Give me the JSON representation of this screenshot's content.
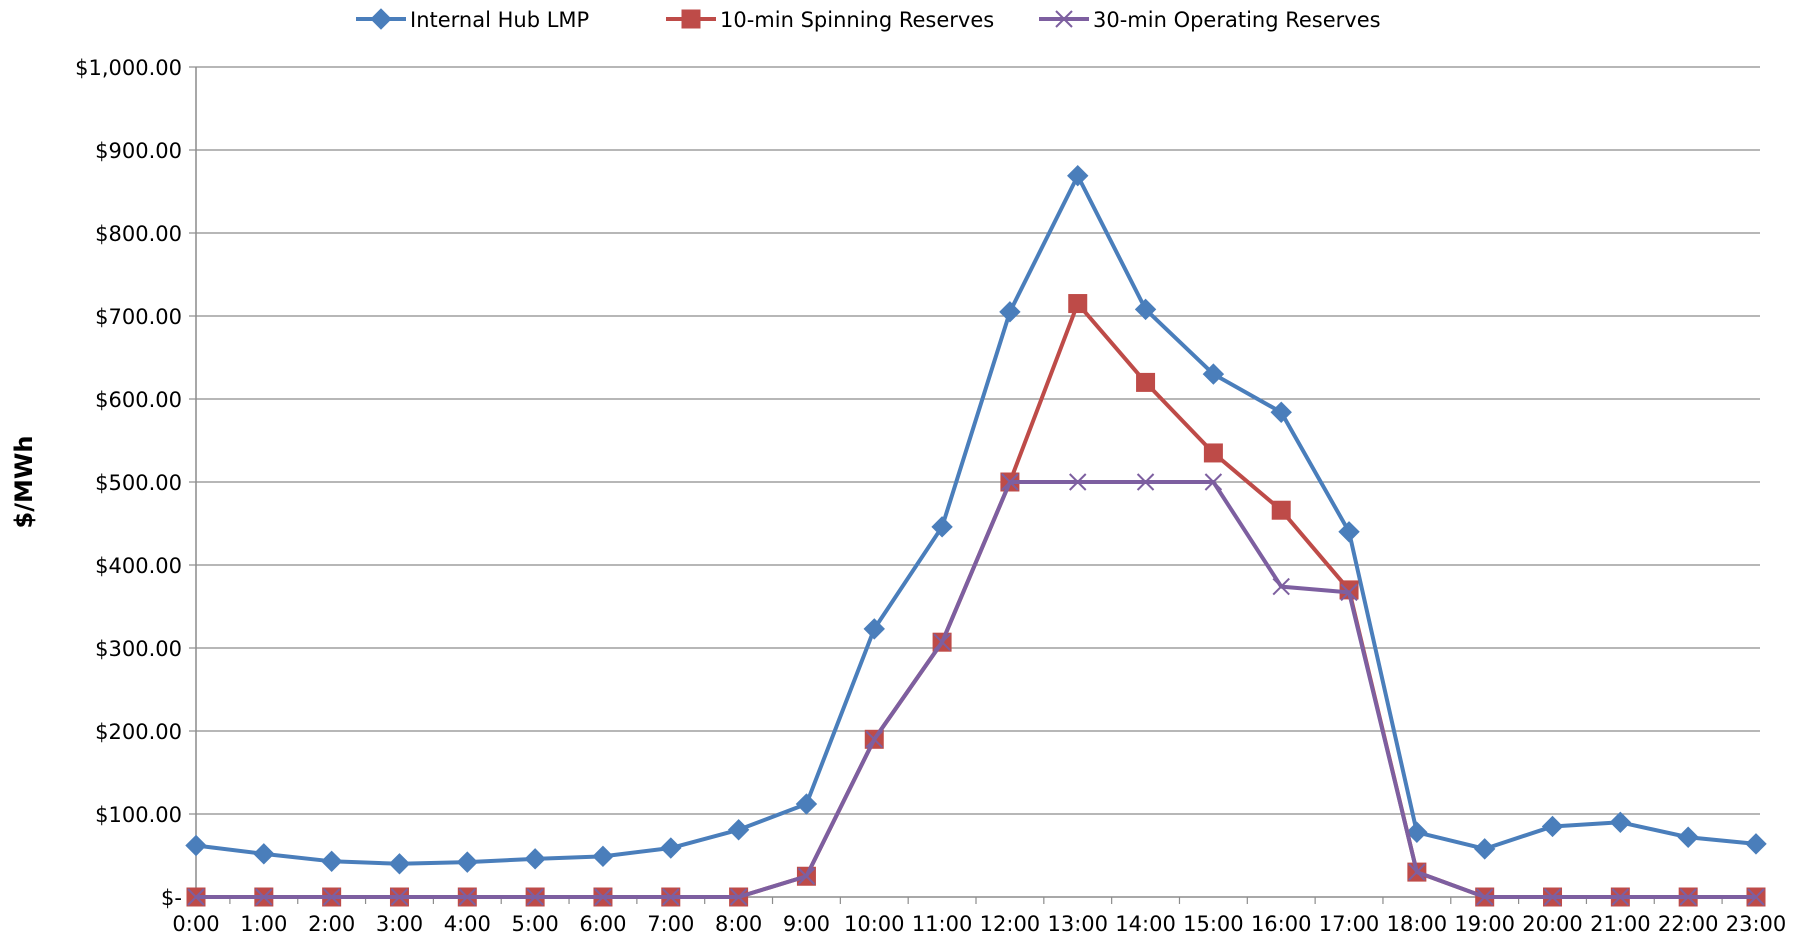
{
  "chart_data": {
    "type": "line",
    "title": "",
    "xlabel": "",
    "ylabel": "$/MWh",
    "ylim": [
      0,
      1000
    ],
    "yticks": [
      0,
      100,
      200,
      300,
      400,
      500,
      600,
      700,
      800,
      900,
      1000
    ],
    "ytick_labels": [
      "$-",
      "$100.00",
      "$200.00",
      "$300.00",
      "$400.00",
      "$500.00",
      "$600.00",
      "$700.00",
      "$800.00",
      "$900.00",
      "$1,000.00"
    ],
    "categories": [
      "0:00",
      "1:00",
      "2:00",
      "3:00",
      "4:00",
      "5:00",
      "6:00",
      "7:00",
      "8:00",
      "9:00",
      "10:00",
      "11:00",
      "12:00",
      "13:00",
      "14:00",
      "15:00",
      "16:00",
      "17:00",
      "18:00",
      "19:00",
      "20:00",
      "21:00",
      "22:00",
      "23:00"
    ],
    "grid": true,
    "legend_position": "top",
    "series": [
      {
        "name": "Internal Hub LMP",
        "color": "#4A7EBB",
        "marker": "diamond",
        "values": [
          62,
          52,
          43,
          40,
          42,
          46,
          49,
          59,
          81,
          112,
          323,
          446,
          705,
          869,
          708,
          630,
          584,
          440,
          78,
          58,
          85,
          90,
          72,
          64
        ]
      },
      {
        "name": "10-min Spinning Reserves",
        "color": "#BE4B48",
        "marker": "square",
        "values": [
          0,
          0,
          0,
          0,
          0,
          0,
          0,
          0,
          0,
          25,
          190,
          307,
          500,
          715,
          620,
          535,
          466,
          370,
          30,
          0,
          0,
          0,
          0,
          0
        ]
      },
      {
        "name": "30-min Operating Reserves",
        "color": "#7D5FA0",
        "marker": "x",
        "values": [
          0,
          0,
          0,
          0,
          0,
          0,
          0,
          0,
          0,
          25,
          190,
          307,
          500,
          500,
          500,
          500,
          374,
          367,
          30,
          0,
          0,
          0,
          0,
          0
        ]
      }
    ]
  }
}
